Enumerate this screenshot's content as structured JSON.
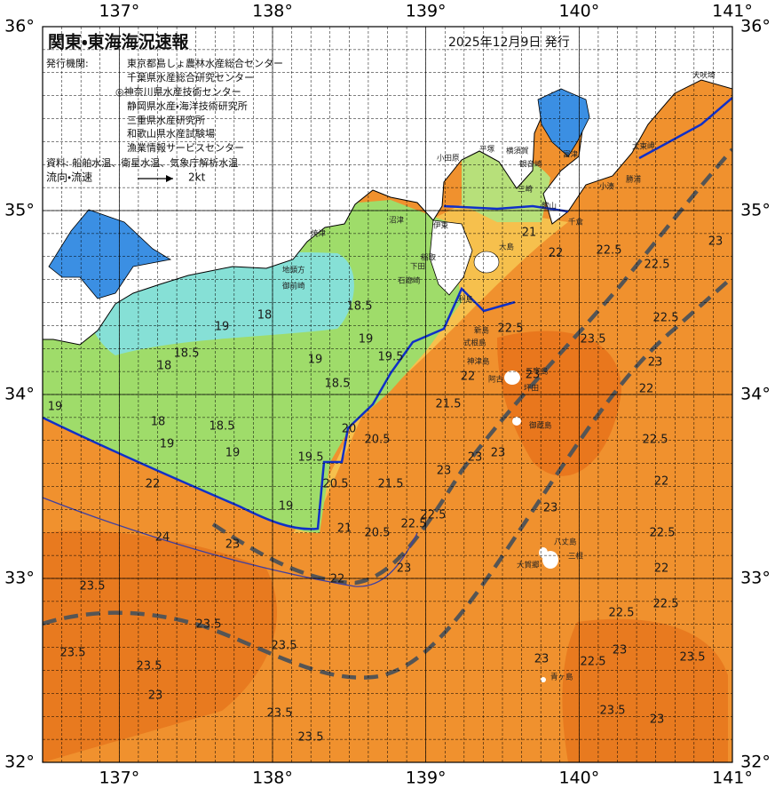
{
  "header": {
    "title": "関東・東海海況速報",
    "date": "2025年12月9日 発行",
    "publisher_label": "発行機関:",
    "publishers": [
      "東京都島しょ農林水産総合センター",
      "千葉県水産総合研究センター",
      "◎神奈川県水産技術センター",
      "静岡県水産・海洋技術研究所",
      "三重県水産研究所",
      "和歌山県水産試験場",
      "漁業情報サービスセンター"
    ],
    "sources": "資料: 船舶水温、衛星水温、気象庁解析水温",
    "flow_label": "流向・流速",
    "flow_scale": "2kt"
  },
  "map": {
    "lon_range": [
      136.5,
      141
    ],
    "lat_range": [
      32,
      36
    ],
    "lon_ticks": [
      {
        "value": 137,
        "label": "137°"
      },
      {
        "value": 138,
        "label": "138°"
      },
      {
        "value": 139,
        "label": "139°"
      },
      {
        "value": 140,
        "label": "140°"
      },
      {
        "value": 141,
        "label": "141°"
      }
    ],
    "lat_ticks": [
      {
        "value": 36,
        "label": "36°"
      },
      {
        "value": 35,
        "label": "35°"
      },
      {
        "value": 34,
        "label": "34°"
      },
      {
        "value": 33,
        "label": "33°"
      },
      {
        "value": 32,
        "label": "32°"
      }
    ]
  },
  "place_names": [
    "犬吠埼",
    "太東岬",
    "勝浦",
    "小湊",
    "千倉",
    "館山",
    "富津",
    "横須賀",
    "観音崎",
    "三崎",
    "平塚",
    "小田原",
    "伊東",
    "稲取",
    "下田",
    "石廊崎",
    "焼津",
    "沼津",
    "地頭方",
    "御前崎",
    "大島",
    "利島",
    "新島",
    "式根島",
    "神津島",
    "三宅島",
    "阿古",
    "坪田",
    "御蔵島",
    "八丈島",
    "三根",
    "大賀郷",
    "青ヶ島"
  ],
  "isotherm_labels": [
    "19",
    "18.5",
    "18",
    "18.5",
    "18",
    "19",
    "19",
    "18.5",
    "18",
    "19",
    "19",
    "18.5",
    "19",
    "19.5",
    "20",
    "20.5",
    "19.5",
    "19",
    "20.5",
    "21",
    "20.5",
    "21.5",
    "22",
    "24",
    "23",
    "22",
    "23.5",
    "23.5",
    "23.5",
    "23.5",
    "23",
    "23.5",
    "23.5",
    "23.5",
    "22.5",
    "23",
    "21.5",
    "22",
    "23",
    "22.5",
    "21",
    "22",
    "22.5",
    "22.5",
    "23",
    "23.5",
    "22.5",
    "23",
    "22",
    "23",
    "22.5",
    "23",
    "22",
    "22.5",
    "22",
    "23",
    "22.5",
    "22.5",
    "23",
    "22.5",
    "23.5",
    "23",
    "23.5",
    "23",
    "23",
    "22.5"
  ]
}
